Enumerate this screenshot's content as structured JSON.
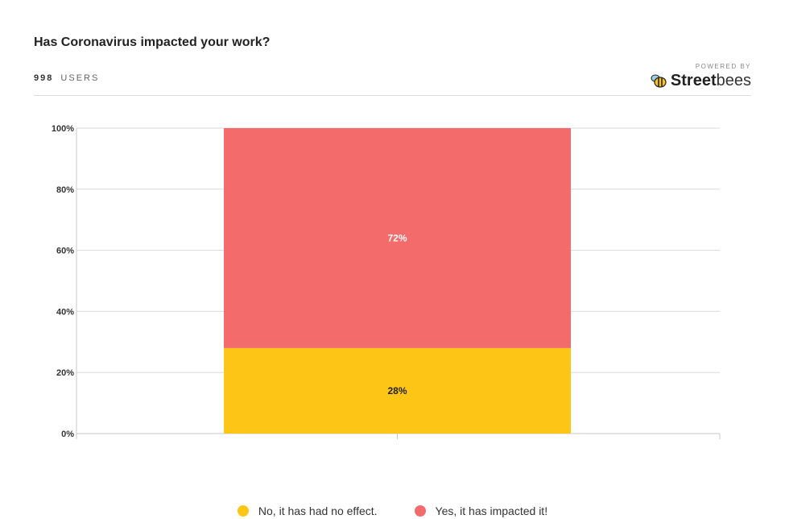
{
  "header": {
    "title": "Has Coronavirus impacted your work?",
    "user_count": "998",
    "users_label": "USERS",
    "powered_by": "POWERED BY",
    "brand_bold": "Street",
    "brand_light": "bees",
    "brand_icon": "bee-icon"
  },
  "colors": {
    "no_effect": "#fdc516",
    "impacted": "#f36b6b",
    "grid": "#d9d9d9"
  },
  "chart_data": {
    "type": "bar",
    "stacked": true,
    "title": "Has Coronavirus impacted your work?",
    "categories": [
      ""
    ],
    "ylim": [
      0,
      100
    ],
    "yticks": [
      0,
      20,
      40,
      60,
      80,
      100
    ],
    "ytick_labels": [
      "0%",
      "20%",
      "40%",
      "60%",
      "80%",
      "100%"
    ],
    "series": [
      {
        "name": "No, it has had no effect.",
        "values": [
          28
        ],
        "label": "28%",
        "color": "#fdc516"
      },
      {
        "name": "Yes, it has impacted it!",
        "values": [
          72
        ],
        "label": "72%",
        "color": "#f36b6b"
      }
    ],
    "grid": true,
    "legend_position": "bottom"
  }
}
